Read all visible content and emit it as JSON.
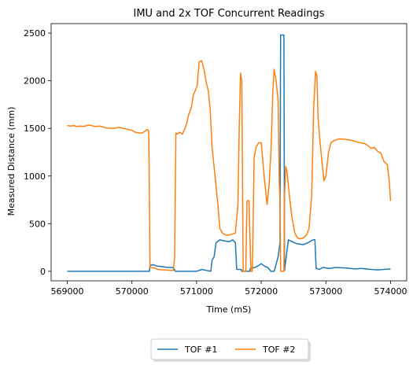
{
  "chart_data": {
    "type": "line",
    "title": "IMU and 2x TOF Concurrent Readings",
    "xlabel": "Time (mS)",
    "ylabel": "Measured Distance (mm)",
    "xlim": [
      568750,
      574250
    ],
    "ylim": [
      -100,
      2600
    ],
    "xticks": [
      569000,
      570000,
      571000,
      572000,
      573000,
      574000
    ],
    "yticks": [
      0,
      500,
      1000,
      1500,
      2000,
      2500
    ],
    "grid": false,
    "legend": {
      "placement": "bottom-center, below plot",
      "entries": [
        "TOF #1",
        "TOF #2"
      ]
    },
    "series": [
      {
        "name": "TOF #1",
        "color": "#1f77b4",
        "points": [
          [
            569000,
            0
          ],
          [
            570270,
            0
          ],
          [
            570280,
            60
          ],
          [
            570330,
            70
          ],
          [
            570380,
            55
          ],
          [
            570450,
            50
          ],
          [
            570550,
            40
          ],
          [
            570640,
            40
          ],
          [
            570670,
            0
          ],
          [
            571000,
            0
          ],
          [
            571080,
            20
          ],
          [
            571150,
            10
          ],
          [
            571220,
            0
          ],
          [
            571240,
            120
          ],
          [
            571270,
            150
          ],
          [
            571300,
            300
          ],
          [
            571360,
            330
          ],
          [
            571420,
            320
          ],
          [
            571500,
            310
          ],
          [
            571560,
            330
          ],
          [
            571600,
            300
          ],
          [
            571620,
            20
          ],
          [
            571690,
            20
          ],
          [
            571700,
            0
          ],
          [
            571820,
            0
          ],
          [
            571830,
            30
          ],
          [
            571900,
            40
          ],
          [
            571960,
            60
          ],
          [
            572000,
            80
          ],
          [
            572060,
            50
          ],
          [
            572100,
            40
          ],
          [
            572150,
            0
          ],
          [
            572200,
            0
          ],
          [
            572260,
            150
          ],
          [
            572290,
            300
          ],
          [
            572300,
            2480
          ],
          [
            572350,
            2480
          ],
          [
            572360,
            10
          ],
          [
            572420,
            330
          ],
          [
            572480,
            310
          ],
          [
            572550,
            290
          ],
          [
            572650,
            280
          ],
          [
            572720,
            300
          ],
          [
            572800,
            330
          ],
          [
            572830,
            330
          ],
          [
            572850,
            30
          ],
          [
            572900,
            20
          ],
          [
            572950,
            40
          ],
          [
            573050,
            30
          ],
          [
            573150,
            40
          ],
          [
            573300,
            35
          ],
          [
            573450,
            25
          ],
          [
            573550,
            30
          ],
          [
            573700,
            20
          ],
          [
            573800,
            15
          ],
          [
            573900,
            20
          ],
          [
            574000,
            25
          ]
        ]
      },
      {
        "name": "TOF #2",
        "color": "#ff7f0e",
        "points": [
          [
            569000,
            1530
          ],
          [
            569050,
            1525
          ],
          [
            569100,
            1530
          ],
          [
            569150,
            1520
          ],
          [
            569200,
            1525
          ],
          [
            569250,
            1520
          ],
          [
            569300,
            1530
          ],
          [
            569350,
            1535
          ],
          [
            569400,
            1525
          ],
          [
            569450,
            1520
          ],
          [
            569500,
            1525
          ],
          [
            569550,
            1515
          ],
          [
            569600,
            1505
          ],
          [
            569700,
            1500
          ],
          [
            569800,
            1510
          ],
          [
            569900,
            1495
          ],
          [
            570000,
            1480
          ],
          [
            570050,
            1460
          ],
          [
            570100,
            1455
          ],
          [
            570150,
            1450
          ],
          [
            570200,
            1470
          ],
          [
            570240,
            1490
          ],
          [
            570260,
            1470
          ],
          [
            570280,
            40
          ],
          [
            570350,
            35
          ],
          [
            570400,
            20
          ],
          [
            570500,
            15
          ],
          [
            570600,
            10
          ],
          [
            570640,
            10
          ],
          [
            570660,
            150
          ],
          [
            570680,
            1450
          ],
          [
            570700,
            1440
          ],
          [
            570740,
            1460
          ],
          [
            570780,
            1440
          ],
          [
            570820,
            1500
          ],
          [
            570850,
            1560
          ],
          [
            570880,
            1650
          ],
          [
            570920,
            1720
          ],
          [
            570950,
            1850
          ],
          [
            570980,
            1900
          ],
          [
            571010,
            1950
          ],
          [
            571040,
            2200
          ],
          [
            571080,
            2210
          ],
          [
            571120,
            2100
          ],
          [
            571150,
            1980
          ],
          [
            571180,
            1900
          ],
          [
            571210,
            1700
          ],
          [
            571240,
            1300
          ],
          [
            571270,
            1100
          ],
          [
            571300,
            900
          ],
          [
            571330,
            700
          ],
          [
            571360,
            450
          ],
          [
            571400,
            400
          ],
          [
            571450,
            380
          ],
          [
            571500,
            380
          ],
          [
            571550,
            390
          ],
          [
            571600,
            400
          ],
          [
            571640,
            700
          ],
          [
            571660,
            1500
          ],
          [
            571680,
            2080
          ],
          [
            571700,
            2000
          ],
          [
            571720,
            0
          ],
          [
            571760,
            0
          ],
          [
            571780,
            740
          ],
          [
            571810,
            740
          ],
          [
            571840,
            0
          ],
          [
            571860,
            0
          ],
          [
            571870,
            300
          ],
          [
            571890,
            1200
          ],
          [
            571920,
            1300
          ],
          [
            571960,
            1350
          ],
          [
            572000,
            1350
          ],
          [
            572030,
            1100
          ],
          [
            572060,
            900
          ],
          [
            572090,
            700
          ],
          [
            572120,
            900
          ],
          [
            572150,
            1250
          ],
          [
            572180,
            1900
          ],
          [
            572200,
            2120
          ],
          [
            572230,
            2000
          ],
          [
            572260,
            1800
          ],
          [
            572280,
            900
          ],
          [
            572290,
            750
          ],
          [
            572300,
            0
          ],
          [
            572350,
            0
          ],
          [
            572360,
            800
          ],
          [
            572380,
            1100
          ],
          [
            572400,
            1040
          ],
          [
            572420,
            900
          ],
          [
            572450,
            700
          ],
          [
            572480,
            550
          ],
          [
            572520,
            400
          ],
          [
            572560,
            350
          ],
          [
            572600,
            340
          ],
          [
            572650,
            350
          ],
          [
            572700,
            380
          ],
          [
            572740,
            450
          ],
          [
            572780,
            800
          ],
          [
            572810,
            1700
          ],
          [
            572840,
            2100
          ],
          [
            572860,
            2050
          ],
          [
            572880,
            1600
          ],
          [
            572910,
            1350
          ],
          [
            572940,
            1150
          ],
          [
            572970,
            950
          ],
          [
            573000,
            1000
          ],
          [
            573040,
            1250
          ],
          [
            573080,
            1350
          ],
          [
            573120,
            1370
          ],
          [
            573160,
            1380
          ],
          [
            573200,
            1390
          ],
          [
            573300,
            1385
          ],
          [
            573400,
            1375
          ],
          [
            573500,
            1355
          ],
          [
            573600,
            1340
          ],
          [
            573650,
            1320
          ],
          [
            573700,
            1290
          ],
          [
            573750,
            1300
          ],
          [
            573800,
            1260
          ],
          [
            573850,
            1240
          ],
          [
            573900,
            1150
          ],
          [
            573950,
            1120
          ],
          [
            573980,
            950
          ],
          [
            574000,
            740
          ]
        ]
      }
    ]
  }
}
